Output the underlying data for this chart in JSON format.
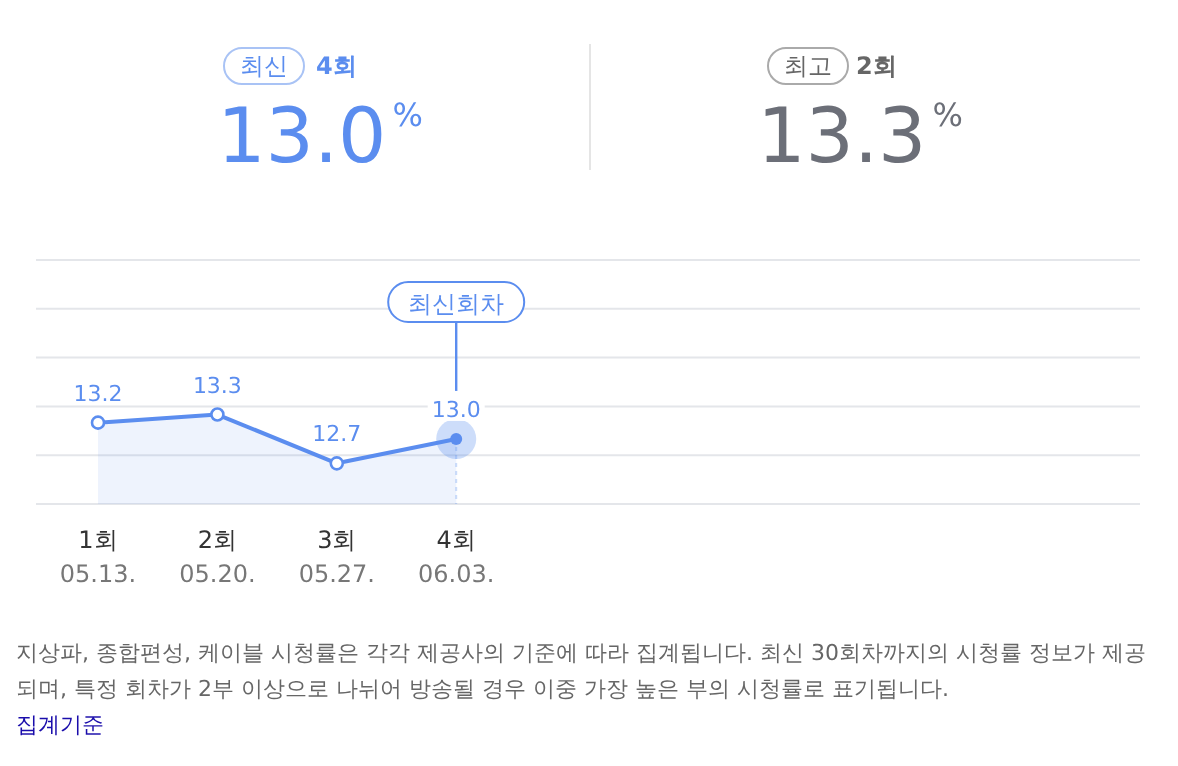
{
  "chart_data": {
    "type": "area",
    "categories": [
      "1회\n05.13.",
      "2회\n05.20.",
      "3회\n05.27.",
      "4회\n06.03."
    ],
    "series": [
      {
        "color": "#5b8def",
        "values": [
          13.2,
          13.3,
          12.7,
          13.0
        ],
        "value_labels": [
          "13.2",
          "13.3",
          "12.7",
          "13.0"
        ]
      }
    ],
    "marker": "circle",
    "grid": "y",
    "ylim": [
      12.2,
      15.2
    ],
    "yticks": [
      {
        "value": 12.2,
        "label": null
      },
      {
        "value": 12.8,
        "label": null
      },
      {
        "value": 13.4,
        "label": null
      },
      {
        "value": 14.0,
        "label": null
      },
      {
        "value": 14.6,
        "label": null
      },
      {
        "value": 15.2,
        "label": null
      }
    ],
    "annotations": [
      "최신",
      "4회",
      "13.0%",
      "최고",
      "2회",
      "13.3%",
      "최신회차",
      "지상파, 종합편성, 케이블 시청률은 각각 제공사의 기준에 따라 집계됩니다. 최신 30회차까지의 시청률 정보가 제공되며, 특정 회차가 2부 이상으로 나뉘어 방송될 경우 이중 가장 높은 부의 시청률로 표기됩니다.",
      "집계기준"
    ]
  }
}
